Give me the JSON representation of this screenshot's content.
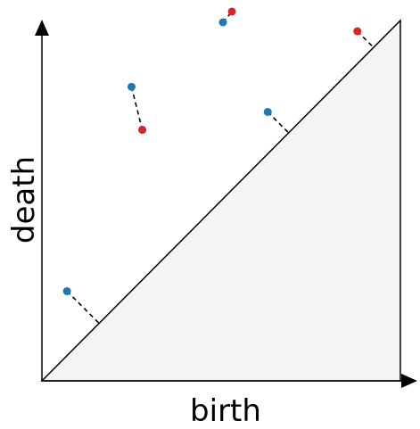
{
  "axes": {
    "x_label": "birth",
    "y_label": "death"
  },
  "colors": {
    "blue": "#1f77b4",
    "red": "#d62728",
    "axis": "#000000",
    "region_fill": "#f4f4f4"
  },
  "points": [
    {
      "id": "p1",
      "color": "blue",
      "birth": 0.07,
      "death": 0.25
    },
    {
      "id": "p2",
      "color": "blue",
      "birth": 0.25,
      "death": 0.82
    },
    {
      "id": "p3",
      "color": "red",
      "birth": 0.28,
      "death": 0.7
    },
    {
      "id": "p4",
      "color": "blue",
      "birth": 0.505,
      "death": 1.0
    },
    {
      "id": "p5",
      "color": "red",
      "birth": 0.53,
      "death": 1.03
    },
    {
      "id": "p6",
      "color": "blue",
      "birth": 0.63,
      "death": 0.75
    },
    {
      "id": "p7",
      "color": "red",
      "birth": 0.88,
      "death": 0.975
    }
  ],
  "matchings": [
    {
      "from": "p1",
      "to": "diagonal"
    },
    {
      "from": "p2",
      "to": "p3"
    },
    {
      "from": "p4",
      "to": "p5"
    },
    {
      "from": "p6",
      "to": "diagonal"
    },
    {
      "from": "p7",
      "to": "diagonal"
    }
  ]
}
